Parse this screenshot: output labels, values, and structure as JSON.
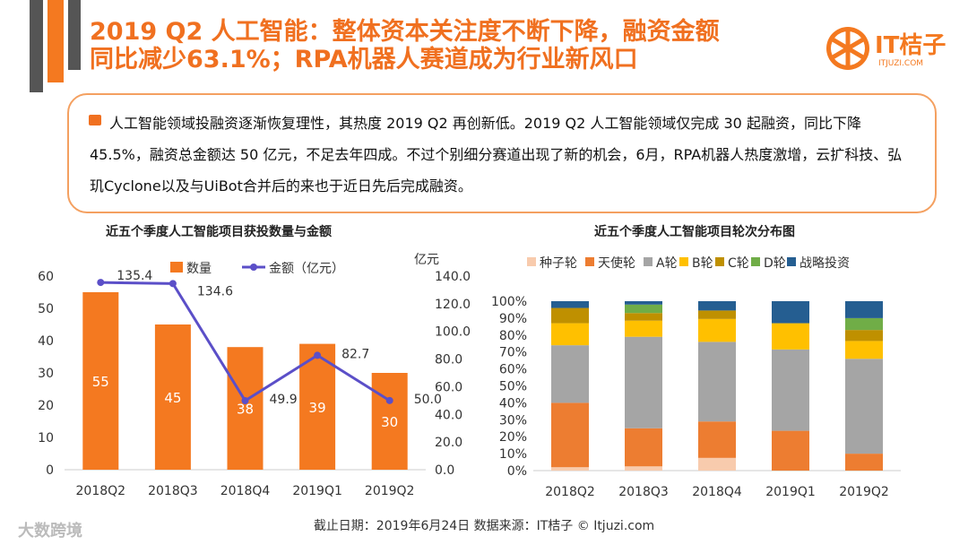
{
  "title": {
    "line1": "2019 Q2 人工智能：整体资本关注度不断下降，融资金额",
    "line2": "同比减少63.1%；RPA机器人赛道成为行业新风口"
  },
  "logo": {
    "name": "IT桔子",
    "url": "ITJUZI.COM"
  },
  "summary": "人工智能领域投融资逐渐恢复理性，其热度 2019 Q2 再创新低。2019 Q2 人工智能领域仅完成 30 起融资，同比下降45.5%，融资总金额达 50 亿元，不足去年四成。不过个别细分赛道出现了新的机会，6月，RPA机器人热度激增，云扩科技、弘玑Cyclone以及与UiBot合并后的来也于近日先后完成融资。",
  "footer": "截止日期：2019年6月24日    数据来源：IT桔子 © Itjuzi.com",
  "watermark": "大数跨境",
  "colors": {
    "accent": "#f07020",
    "bar": "#f47920",
    "line": "#5b4fc8"
  },
  "chart_data": [
    {
      "type": "bar+line",
      "title": "近五个季度人工智能项目获投数量与金额",
      "categories": [
        "2018Q2",
        "2018Q3",
        "2018Q4",
        "2019Q1",
        "2019Q2"
      ],
      "series": [
        {
          "name": "数量",
          "type": "bar",
          "axis": "left",
          "values": [
            55,
            45,
            38,
            39,
            30
          ]
        },
        {
          "name": "金额（亿元）",
          "type": "line",
          "axis": "right",
          "values": [
            135.4,
            134.6,
            49.9,
            82.7,
            50.0
          ]
        }
      ],
      "ylim": [
        0,
        60
      ],
      "yticks": [
        0,
        10,
        20,
        30,
        40,
        50,
        60
      ],
      "y2lim": [
        0,
        140
      ],
      "y2ticks": [
        "0.0",
        "20.0",
        "40.0",
        "60.0",
        "80.0",
        "100.0",
        "120.0",
        "140.0"
      ],
      "y2label": "亿元",
      "legend": "top"
    },
    {
      "type": "stacked-bar-100",
      "title": "近五个季度人工智能项目轮次分布图",
      "categories": [
        "2018Q2",
        "2018Q3",
        "2018Q4",
        "2019Q1",
        "2019Q2"
      ],
      "series": [
        {
          "name": "种子轮",
          "color": "#f8cbad",
          "values": [
            2,
            2.5,
            7.5,
            0,
            0
          ]
        },
        {
          "name": "天使轮",
          "color": "#ed7d31",
          "values": [
            38,
            22.5,
            21.5,
            23.5,
            10
          ]
        },
        {
          "name": "A轮",
          "color": "#a5a5a5",
          "values": [
            34,
            54,
            47,
            48,
            56
          ]
        },
        {
          "name": "B轮",
          "color": "#ffc000",
          "values": [
            13,
            9.5,
            13.5,
            15.5,
            10.5
          ]
        },
        {
          "name": "C轮",
          "color": "#bf9000",
          "values": [
            9,
            4.5,
            5,
            0,
            6.5
          ]
        },
        {
          "name": "D轮",
          "color": "#70ad47",
          "values": [
            0,
            5,
            0,
            0,
            7
          ]
        },
        {
          "name": "战略投资",
          "color": "#255e91",
          "values": [
            4,
            2,
            5.5,
            13,
            10
          ]
        }
      ],
      "yticks": [
        "0%",
        "10%",
        "20%",
        "30%",
        "40%",
        "50%",
        "60%",
        "70%",
        "80%",
        "90%",
        "100%"
      ],
      "legend": "top"
    }
  ]
}
